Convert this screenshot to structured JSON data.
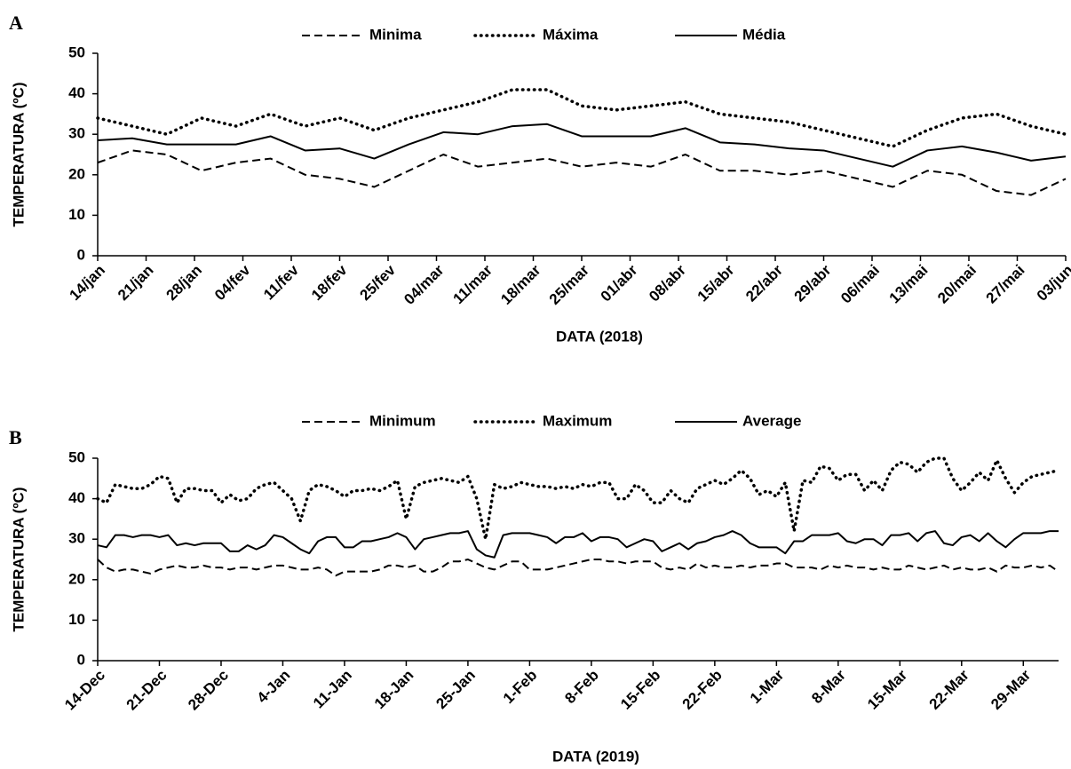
{
  "chart_data": [
    {
      "type": "line",
      "panel": "A",
      "xlabel": "DATA (2018)",
      "ylabel": "TEMPERATURA (ºC)",
      "x": [
        "2018-01-14",
        "2018-01-19",
        "2018-01-24",
        "2018-01-29",
        "2018-02-03",
        "2018-02-08",
        "2018-02-13",
        "2018-02-18",
        "2018-02-23",
        "2018-02-28",
        "2018-03-05",
        "2018-03-10",
        "2018-03-15",
        "2018-03-20",
        "2018-03-25",
        "2018-03-30",
        "2018-04-04",
        "2018-04-09",
        "2018-04-14",
        "2018-04-19",
        "2018-04-24",
        "2018-04-29",
        "2018-05-04",
        "2018-05-09",
        "2018-05-14",
        "2018-05-19",
        "2018-05-24",
        "2018-05-29",
        "2018-06-03"
      ],
      "xlim": [
        "2018-01-14",
        "2018-06-03"
      ],
      "xticks": [
        {
          "value": "2018-01-14",
          "label": "14/jan"
        },
        {
          "value": "2018-01-21",
          "label": "21/jan"
        },
        {
          "value": "2018-01-28",
          "label": "28/jan"
        },
        {
          "value": "2018-02-04",
          "label": "04/fev"
        },
        {
          "value": "2018-02-11",
          "label": "11/fev"
        },
        {
          "value": "2018-02-18",
          "label": "18/fev"
        },
        {
          "value": "2018-02-25",
          "label": "25/fev"
        },
        {
          "value": "2018-03-04",
          "label": "04/mar"
        },
        {
          "value": "2018-03-11",
          "label": "11/mar"
        },
        {
          "value": "2018-03-18",
          "label": "18/mar"
        },
        {
          "value": "2018-03-25",
          "label": "25/mar"
        },
        {
          "value": "2018-04-01",
          "label": "01/abr"
        },
        {
          "value": "2018-04-08",
          "label": "08/abr"
        },
        {
          "value": "2018-04-15",
          "label": "15/abr"
        },
        {
          "value": "2018-04-22",
          "label": "22/abr"
        },
        {
          "value": "2018-04-29",
          "label": "29/abr"
        },
        {
          "value": "2018-05-06",
          "label": "06/mai"
        },
        {
          "value": "2018-05-13",
          "label": "13/mai"
        },
        {
          "value": "2018-05-20",
          "label": "20/mai"
        },
        {
          "value": "2018-05-27",
          "label": "27/mai"
        },
        {
          "value": "2018-06-03",
          "label": "03/jun"
        }
      ],
      "ylim": [
        0,
        50
      ],
      "yticks": [
        0,
        10,
        20,
        30,
        40,
        50
      ],
      "grid": false,
      "legend": "top",
      "series": [
        {
          "name": "Minima",
          "color": "#000000",
          "style": "dashed",
          "values": [
            23,
            26,
            25,
            21,
            23,
            24,
            20,
            19,
            17,
            21,
            25,
            22,
            23,
            24,
            22,
            23,
            22,
            25,
            21,
            21,
            20,
            21,
            19,
            17,
            21,
            20,
            16,
            15,
            19
          ]
        },
        {
          "name": "Máxima",
          "color": "#000000",
          "style": "dotted",
          "values": [
            34,
            32,
            30,
            34,
            32,
            35,
            32,
            34,
            31,
            34,
            36,
            38,
            41,
            41,
            37,
            36,
            37,
            38,
            35,
            34,
            33,
            31,
            29,
            27,
            31,
            34,
            35,
            32,
            30
          ]
        },
        {
          "name": "Média",
          "color": "#000000",
          "style": "solid",
          "values": [
            28.5,
            29,
            27.5,
            27.5,
            27.5,
            29.5,
            26,
            26.5,
            24,
            27.5,
            30.5,
            30,
            32,
            32.5,
            29.5,
            29.5,
            29.5,
            31.5,
            28,
            27.5,
            26.5,
            26,
            24,
            22,
            26,
            27,
            25.5,
            23.5,
            24.5
          ]
        }
      ]
    },
    {
      "type": "line",
      "panel": "B",
      "xlabel": "DATA (2019)",
      "ylabel": "TEMPERATURA (ºC)",
      "categories": [
        "14-Dec",
        null,
        null,
        null,
        null,
        null,
        null,
        "21-Dec",
        null,
        null,
        null,
        null,
        null,
        null,
        "28-Dec",
        null,
        null,
        null,
        null,
        null,
        null,
        "4-Jan",
        null,
        null,
        null,
        null,
        null,
        null,
        "11-Jan",
        null,
        null,
        null,
        null,
        null,
        null,
        "18-Jan",
        null,
        null,
        null,
        null,
        null,
        null,
        "25-Jan",
        null,
        null,
        null,
        null,
        null,
        null,
        "1-Feb",
        null,
        null,
        null,
        null,
        null,
        null,
        "8-Feb",
        null,
        null,
        null,
        null,
        null,
        null,
        "15-Feb",
        null,
        null,
        null,
        null,
        null,
        null,
        "22-Feb",
        null,
        null,
        null,
        null,
        null,
        null,
        "1-Mar",
        null,
        null,
        null,
        null,
        null,
        null,
        "8-Mar",
        null,
        null,
        null,
        null,
        null,
        null,
        "15-Mar",
        null,
        null,
        null,
        null,
        null,
        null,
        "22-Mar",
        null,
        null,
        null,
        null,
        null,
        null,
        "29-Mar",
        null,
        null,
        null,
        null
      ],
      "ylim": [
        0,
        50
      ],
      "yticks": [
        0,
        10,
        20,
        30,
        40,
        50
      ],
      "grid": false,
      "legend": "top",
      "series": [
        {
          "name": "Minimum",
          "color": "#000000",
          "style": "dashed",
          "values": [
            25,
            23,
            22,
            22.5,
            22.5,
            22,
            21.5,
            22.5,
            23,
            23.5,
            23,
            23,
            23.5,
            23,
            23,
            22.5,
            23,
            23,
            22.5,
            23,
            23.5,
            23.5,
            23,
            22.5,
            22.5,
            23,
            22.5,
            21,
            22,
            22,
            22,
            22,
            22.5,
            23.5,
            23.5,
            23,
            23.5,
            22,
            22,
            23,
            24.5,
            24.5,
            25,
            24,
            23,
            22.5,
            23.5,
            24.5,
            24.5,
            22.5,
            22.5,
            22.5,
            23,
            23.5,
            24,
            24.5,
            25,
            25,
            24.5,
            24.5,
            24,
            24.5,
            24.5,
            24.5,
            23,
            22.5,
            23,
            22.5,
            24,
            23,
            23.5,
            23,
            23,
            23.5,
            23,
            23.5,
            23.5,
            24,
            24,
            23,
            23,
            23,
            22.5,
            23.5,
            23,
            23.5,
            23,
            23,
            22.5,
            23,
            22.5,
            22.5,
            23.5,
            23,
            22.5,
            23,
            23.5,
            22.5,
            23,
            22.5,
            22.5,
            23,
            22,
            23.5,
            23,
            23,
            23.5,
            23,
            23.5,
            22
          ]
        },
        {
          "name": "Maximum",
          "color": "#000000",
          "style": "dotted",
          "values": [
            40,
            39,
            43.5,
            43,
            42.5,
            42.5,
            43.5,
            45.5,
            45,
            39,
            42.5,
            42.5,
            42,
            42,
            39,
            41,
            39.5,
            40,
            42.5,
            43.5,
            44,
            42,
            40,
            34.5,
            42,
            43.5,
            43,
            42,
            40.5,
            42,
            42,
            42.5,
            42,
            43,
            44.5,
            35,
            43,
            44,
            44.5,
            45,
            44.5,
            44,
            45.5,
            40,
            30,
            43.5,
            42.5,
            43,
            44,
            43.5,
            43,
            43,
            42.5,
            43,
            42.5,
            43.5,
            43,
            44,
            44,
            40,
            40,
            43.5,
            42,
            39,
            39,
            42,
            40,
            39,
            42.5,
            43.5,
            44.5,
            43.5,
            45,
            47,
            45,
            41,
            42,
            40.5,
            44,
            32,
            44.5,
            44,
            48,
            47.5,
            44.5,
            46,
            46,
            42,
            44.5,
            42,
            47,
            49,
            48.5,
            46.5,
            49,
            50,
            50,
            45,
            42,
            44,
            46.5,
            44.5,
            49.5,
            45,
            41.5,
            44,
            45.5,
            46,
            46.5,
            47
          ]
        },
        {
          "name": "Average",
          "color": "#000000",
          "style": "solid",
          "values": [
            28.5,
            28,
            31,
            31,
            30.5,
            31,
            31,
            30.5,
            31,
            28.5,
            29,
            28.5,
            29,
            29,
            29,
            27,
            27,
            28.5,
            27.5,
            28.5,
            31,
            30.5,
            29,
            27.5,
            26.5,
            29.5,
            30.5,
            30.5,
            28,
            28,
            29.5,
            29.5,
            30,
            30.5,
            31.5,
            30.5,
            27.5,
            30,
            30.5,
            31,
            31.5,
            31.5,
            32,
            27.5,
            26,
            25.5,
            31,
            31.5,
            31.5,
            31.5,
            31,
            30.5,
            29,
            30.5,
            30.5,
            31.5,
            29.5,
            30.5,
            30.5,
            30,
            28,
            29,
            30,
            29.5,
            27,
            28,
            29,
            27.5,
            29,
            29.5,
            30.5,
            31,
            32,
            31,
            29,
            28,
            28,
            28,
            26.5,
            29.5,
            29.5,
            31,
            31,
            31,
            31.5,
            29.5,
            29,
            30,
            30,
            28.5,
            31,
            31,
            31.5,
            29.5,
            31.5,
            32,
            29,
            28.5,
            30.5,
            31,
            29.5,
            31.5,
            29.5,
            28,
            30,
            31.5,
            31.5,
            31.5,
            32,
            32
          ]
        }
      ]
    }
  ]
}
